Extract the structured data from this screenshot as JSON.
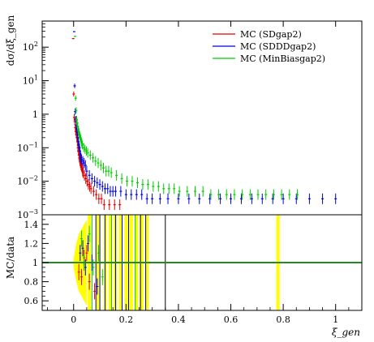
{
  "chart_data": [
    {
      "type": "scatter",
      "panel": "main",
      "ylabel": "dσ/dξ_gen",
      "yscale": "log",
      "xlim": [
        -0.12,
        1.1
      ],
      "ylim": [
        0.001,
        600
      ],
      "yticks": [
        {
          "v": 100,
          "label": "10",
          "exp": "2"
        },
        {
          "v": 10,
          "label": "10",
          "exp": "1"
        },
        {
          "v": 1,
          "label": "1",
          "exp": ""
        },
        {
          "v": 0.1,
          "label": "10",
          "exp": "−1"
        },
        {
          "v": 0.01,
          "label": "10",
          "exp": "−2"
        },
        {
          "v": 0.001,
          "label": "10",
          "exp": "−3"
        }
      ],
      "grid": false,
      "legend_position": "top-right",
      "series": [
        {
          "name": "MC (SDgap2)",
          "color": "#e00000",
          "x": [
            0.002,
            0.004,
            0.006,
            0.008,
            0.01,
            0.012,
            0.014,
            0.016,
            0.018,
            0.02,
            0.022,
            0.024,
            0.026,
            0.028,
            0.03,
            0.032,
            0.034,
            0.036,
            0.038,
            0.04,
            0.045,
            0.05,
            0.055,
            0.06,
            0.065,
            0.07,
            0.08,
            0.09,
            0.1,
            0.11,
            0.12,
            0.14,
            0.16,
            0.18
          ],
          "y": [
            180,
            4,
            0.8,
            0.6,
            0.4,
            0.3,
            0.25,
            0.2,
            0.15,
            0.1,
            0.08,
            0.06,
            0.05,
            0.04,
            0.035,
            0.03,
            0.028,
            0.025,
            0.02,
            0.018,
            0.015,
            0.012,
            0.01,
            0.008,
            0.007,
            0.006,
            0.005,
            0.004,
            0.003,
            0.003,
            0.002,
            0.002,
            0.002,
            0.002
          ]
        },
        {
          "name": "MC (SDDDgap2)",
          "color": "#0000e0",
          "x": [
            0.002,
            0.004,
            0.006,
            0.008,
            0.01,
            0.012,
            0.014,
            0.016,
            0.018,
            0.02,
            0.022,
            0.024,
            0.026,
            0.028,
            0.03,
            0.035,
            0.04,
            0.045,
            0.05,
            0.06,
            0.07,
            0.08,
            0.09,
            0.1,
            0.11,
            0.12,
            0.13,
            0.14,
            0.15,
            0.16,
            0.18,
            0.2,
            0.22,
            0.24,
            0.26,
            0.28,
            0.3,
            0.33,
            0.36,
            0.4,
            0.44,
            0.48,
            0.52,
            0.56,
            0.6,
            0.64,
            0.68,
            0.72,
            0.76,
            0.8,
            0.85,
            0.9,
            0.95,
            1.0
          ],
          "y": [
            290,
            7,
            1.2,
            0.7,
            0.45,
            0.35,
            0.28,
            0.2,
            0.15,
            0.12,
            0.1,
            0.08,
            0.06,
            0.05,
            0.045,
            0.04,
            0.035,
            0.03,
            0.02,
            0.015,
            0.012,
            0.01,
            0.009,
            0.008,
            0.007,
            0.006,
            0.006,
            0.005,
            0.005,
            0.005,
            0.005,
            0.004,
            0.004,
            0.004,
            0.004,
            0.003,
            0.003,
            0.003,
            0.003,
            0.003,
            0.003,
            0.003,
            0.003,
            0.003,
            0.003,
            0.003,
            0.003,
            0.003,
            0.003,
            0.003,
            0.003,
            0.003,
            0.003,
            0.003
          ]
        },
        {
          "name": "MC (MinBiasgap2)",
          "color": "#00cc00",
          "x": [
            0.002,
            0.004,
            0.006,
            0.008,
            0.01,
            0.012,
            0.014,
            0.016,
            0.018,
            0.02,
            0.022,
            0.024,
            0.026,
            0.028,
            0.03,
            0.035,
            0.04,
            0.045,
            0.05,
            0.06,
            0.07,
            0.08,
            0.09,
            0.1,
            0.11,
            0.12,
            0.13,
            0.14,
            0.16,
            0.18,
            0.2,
            0.22,
            0.24,
            0.26,
            0.28,
            0.3,
            0.32,
            0.34,
            0.36,
            0.38,
            0.4,
            0.43,
            0.46,
            0.49,
            0.52,
            0.55,
            0.58,
            0.61,
            0.64,
            0.67,
            0.7,
            0.73,
            0.76,
            0.79,
            0.82,
            0.85
          ],
          "y": [
            210,
            3,
            1.3,
            0.7,
            0.55,
            0.42,
            0.35,
            0.3,
            0.25,
            0.22,
            0.2,
            0.18,
            0.15,
            0.13,
            0.12,
            0.1,
            0.09,
            0.08,
            0.07,
            0.06,
            0.05,
            0.04,
            0.035,
            0.03,
            0.025,
            0.02,
            0.02,
            0.018,
            0.015,
            0.012,
            0.01,
            0.01,
            0.009,
            0.008,
            0.008,
            0.007,
            0.007,
            0.006,
            0.006,
            0.006,
            0.005,
            0.005,
            0.005,
            0.005,
            0.004,
            0.004,
            0.004,
            0.004,
            0.004,
            0.004,
            0.004,
            0.004,
            0.004,
            0.004,
            0.004,
            0.004
          ]
        }
      ]
    },
    {
      "type": "scatter",
      "panel": "ratio",
      "ylabel": "MC/data",
      "xlabel": "ξ_gen",
      "xlim": [
        -0.12,
        1.1
      ],
      "ylim": [
        0.5,
        1.5
      ],
      "xticks": [
        {
          "v": 0,
          "label": "0"
        },
        {
          "v": 0.2,
          "label": "0.2"
        },
        {
          "v": 0.4,
          "label": "0.4"
        },
        {
          "v": 0.6,
          "label": "0.6"
        },
        {
          "v": 0.8,
          "label": "0.8"
        },
        {
          "v": 1.0,
          "label": "1"
        }
      ],
      "yticks": [
        {
          "v": 1.4,
          "label": "1.4"
        },
        {
          "v": 1.2,
          "label": "1.2"
        },
        {
          "v": 1.0,
          "label": "1"
        },
        {
          "v": 0.8,
          "label": "0.8"
        },
        {
          "v": 0.6,
          "label": "0.6"
        }
      ],
      "reference_line": {
        "y": 1.0,
        "color": "#228b22"
      },
      "uncertainty_band": {
        "color": "#ffff00",
        "x": [
          0.0,
          0.01,
          0.02,
          0.03,
          0.04,
          0.05
        ],
        "lo": [
          0.95,
          0.8,
          0.7,
          0.65,
          0.6,
          0.55
        ],
        "hi": [
          1.05,
          1.2,
          1.3,
          1.35,
          1.4,
          1.45
        ]
      },
      "yellow_bars": [
        0.06,
        0.09,
        0.12,
        0.14,
        0.16,
        0.18,
        0.2,
        0.22,
        0.24,
        0.26,
        0.28,
        0.78
      ],
      "series": [
        {
          "name": "SDgap2",
          "color": "#e00000",
          "x": [
            0.02,
            0.03,
            0.04,
            0.05,
            0.06,
            0.08
          ],
          "y": [
            0.9,
            0.85,
            1.05,
            1.1,
            0.8,
            0.7
          ]
        },
        {
          "name": "SDDDgap2",
          "color": "#0000e0",
          "x": [
            0.025,
            0.035,
            0.045,
            0.055,
            0.07,
            0.09
          ],
          "y": [
            1.1,
            1.15,
            0.95,
            1.2,
            1.0,
            0.75
          ]
        },
        {
          "name": "MinBiasgap2",
          "color": "#00cc00",
          "x": [
            0.03,
            0.04,
            0.06,
            0.075,
            0.095,
            0.11
          ],
          "y": [
            1.25,
            1.0,
            1.3,
            0.95,
            1.1,
            0.85
          ]
        }
      ],
      "vertical_lines": [
        {
          "x": 0.07,
          "color": "#00cc00"
        },
        {
          "x": 0.085,
          "color": "#0000e0"
        },
        {
          "x": 0.1,
          "color": "#000000"
        },
        {
          "x": 0.12,
          "color": "#0000e0"
        },
        {
          "x": 0.145,
          "color": "#00cc00"
        },
        {
          "x": 0.16,
          "color": "#000000"
        },
        {
          "x": 0.185,
          "color": "#0000e0"
        },
        {
          "x": 0.21,
          "color": "#000000"
        },
        {
          "x": 0.235,
          "color": "#00cc00"
        },
        {
          "x": 0.255,
          "color": "#000000"
        },
        {
          "x": 0.275,
          "color": "#0000e0"
        },
        {
          "x": 0.35,
          "color": "#000000"
        }
      ]
    }
  ]
}
